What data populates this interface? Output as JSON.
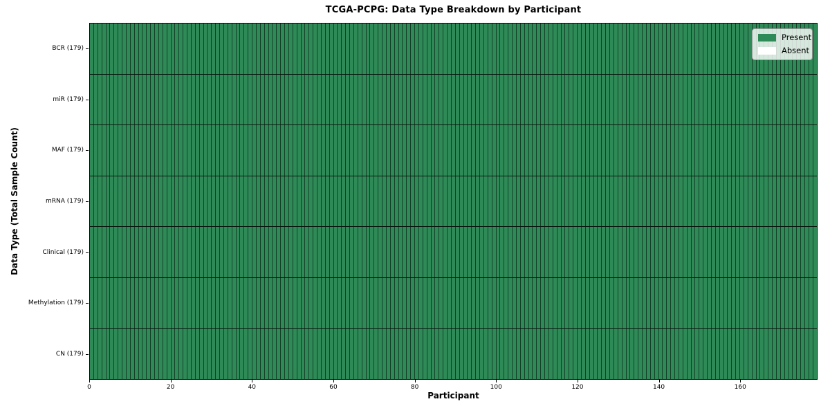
{
  "chart_data": {
    "type": "heatmap",
    "title": "TCGA-PCPG: Data Type Breakdown by Participant",
    "xlabel": "Participant",
    "ylabel": "Data Type (Total Sample Count)",
    "n_participants": 179,
    "x_range": [
      0,
      179
    ],
    "x_ticks": [
      0,
      20,
      40,
      60,
      80,
      100,
      120,
      140,
      160
    ],
    "rows": [
      {
        "label": "BCR (179)",
        "data_type": "BCR",
        "total_samples": 179,
        "present_count": 179,
        "absent_count": 0
      },
      {
        "label": "miR (179)",
        "data_type": "miR",
        "total_samples": 179,
        "present_count": 179,
        "absent_count": 0
      },
      {
        "label": "MAF (179)",
        "data_type": "MAF",
        "total_samples": 179,
        "present_count": 179,
        "absent_count": 0
      },
      {
        "label": "mRNA (179)",
        "data_type": "mRNA",
        "total_samples": 179,
        "present_count": 179,
        "absent_count": 0
      },
      {
        "label": "Clinical (179)",
        "data_type": "Clinical",
        "total_samples": 179,
        "present_count": 179,
        "absent_count": 0
      },
      {
        "label": "Methylation (179)",
        "data_type": "Methylation",
        "total_samples": 179,
        "present_count": 179,
        "absent_count": 0
      },
      {
        "label": "CN (179)",
        "data_type": "CN",
        "total_samples": 179,
        "present_count": 179,
        "absent_count": 0
      }
    ],
    "legend": {
      "position": "upper right",
      "entries": [
        {
          "label": "Present",
          "color": "#2e8b57"
        },
        {
          "label": "Absent",
          "color": "#ffffff"
        }
      ]
    },
    "colors": {
      "present": "#2e8b57",
      "absent": "#ffffff",
      "cell_grid": "rgba(0,0,0,0.55)",
      "row_divider": "rgba(0,0,0,0.85)",
      "frame": "#000000"
    },
    "grid": "per-cell vertical gridlines, per-row horizontal dividers"
  }
}
